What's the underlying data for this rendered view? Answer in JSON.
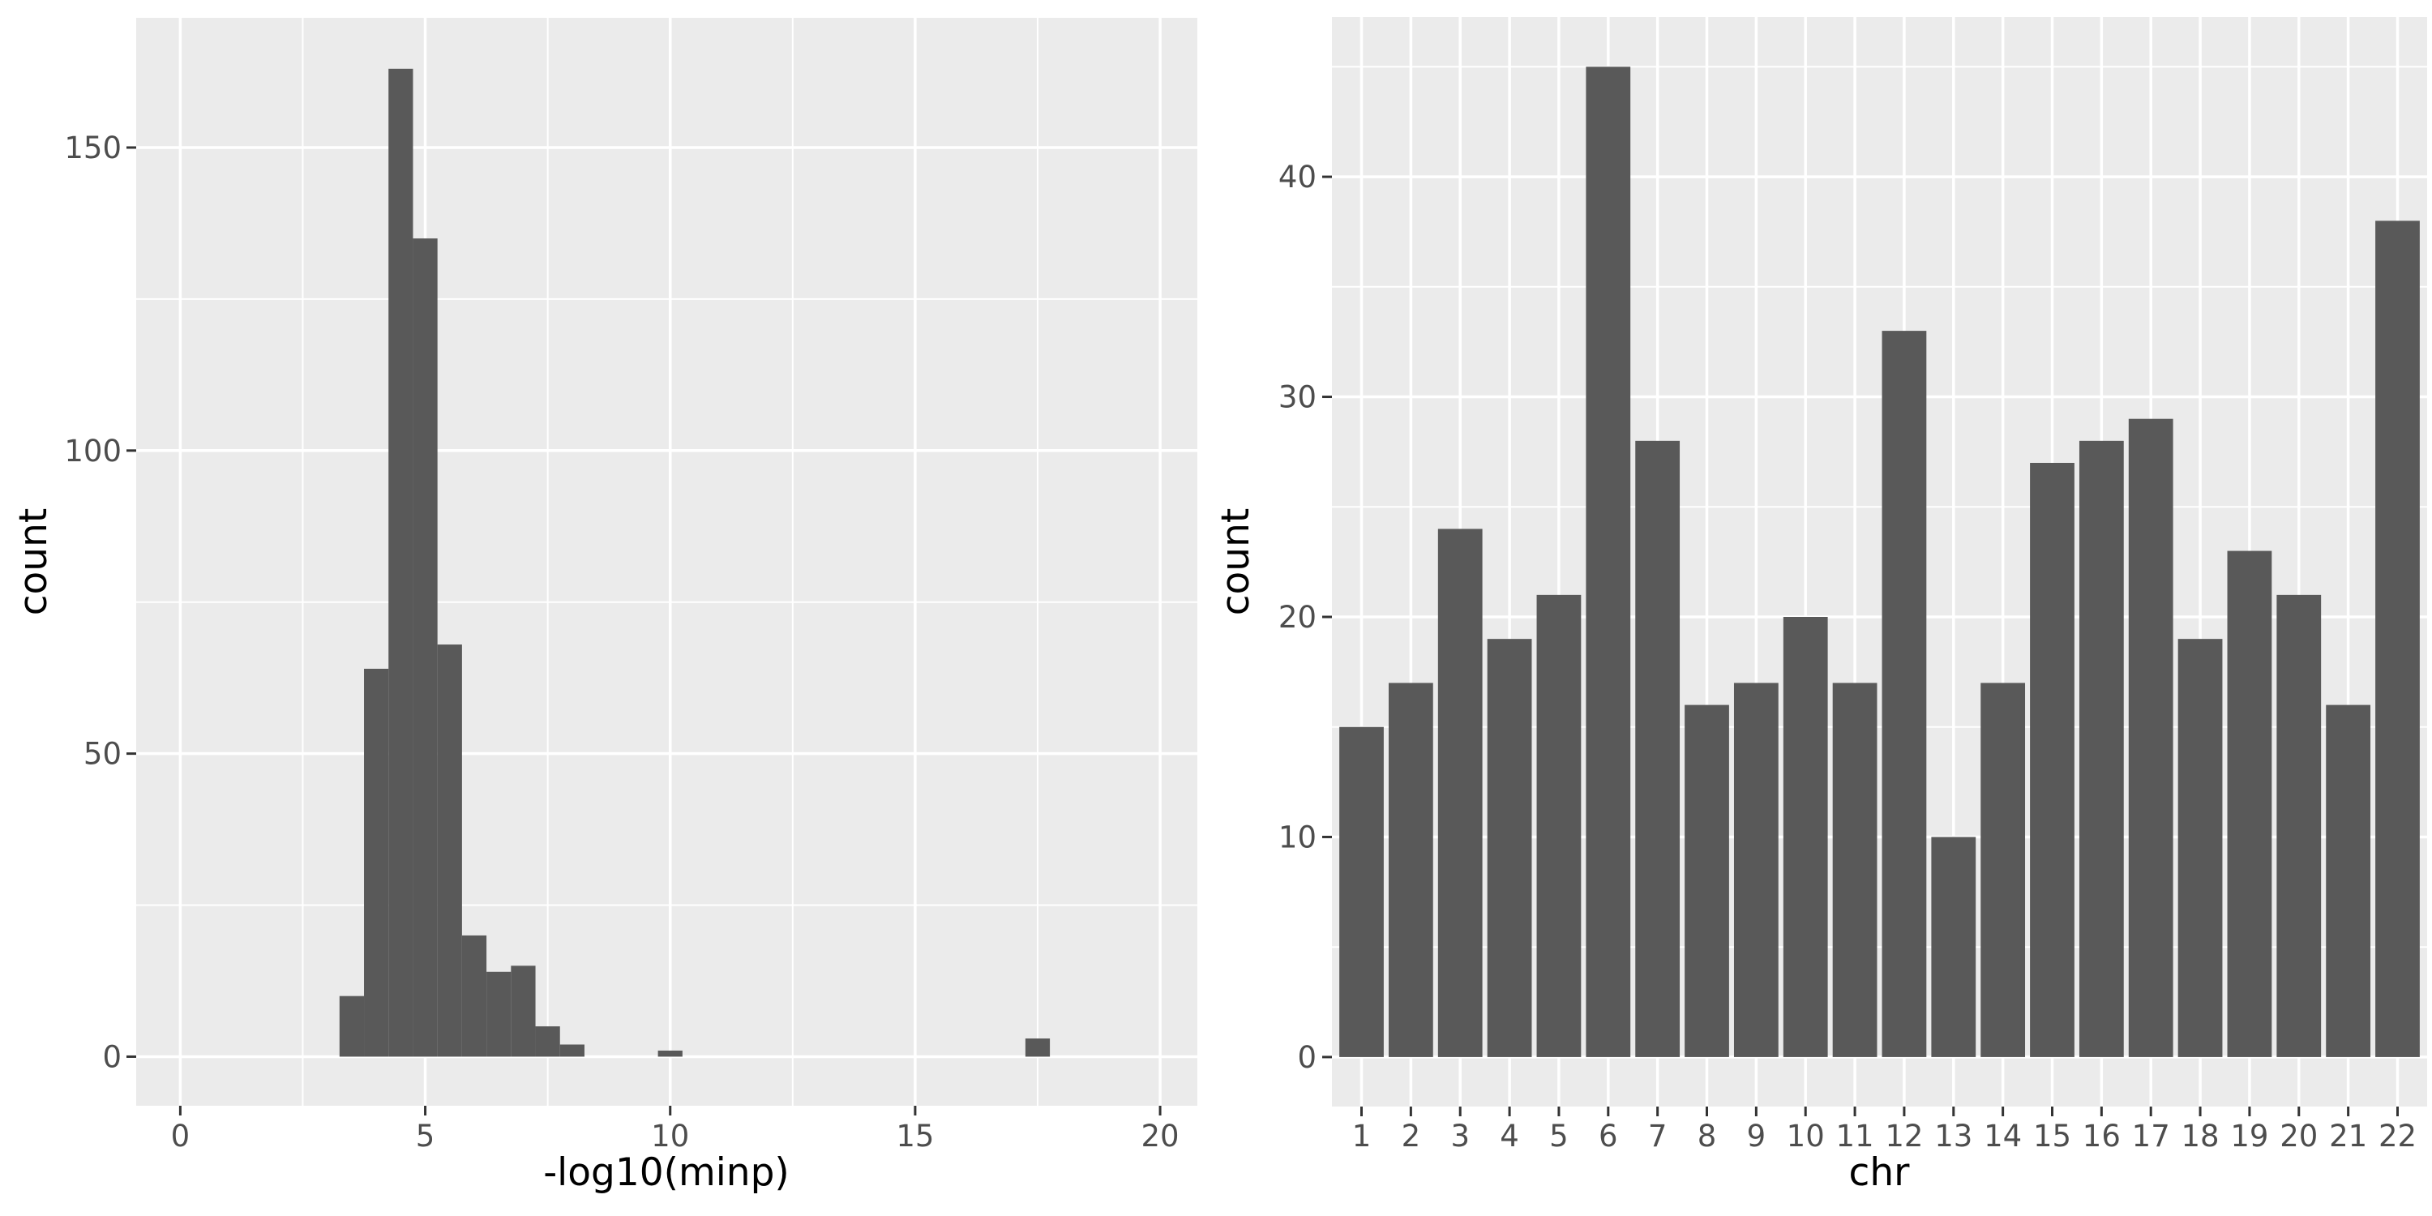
{
  "colors": {
    "figure_background": "#FFFFFF",
    "panel_background": "#EBEBEB",
    "gridline": "#FFFFFF",
    "bar_fill": "#595959",
    "tick_label": "#4D4D4D",
    "axis_title": "#000000",
    "tick_mark": "#333333"
  },
  "chart_data": [
    {
      "type": "bar",
      "subtype": "histogram",
      "title": "",
      "xlabel": "-log10(minp)",
      "ylabel": "count",
      "bin_width": 0.5,
      "bin_centers": [
        3.5,
        4.0,
        4.5,
        5.0,
        5.5,
        6.0,
        6.5,
        7.0,
        7.5,
        8.0,
        10.0,
        17.5
      ],
      "values": [
        10,
        64,
        163,
        135,
        68,
        20,
        14,
        15,
        5,
        2,
        1,
        3
      ],
      "x_ticks": {
        "values": [
          0,
          5,
          10,
          15,
          20
        ],
        "labels": [
          "0",
          "5",
          "10",
          "15",
          "20"
        ]
      },
      "x_minor": [
        2.5,
        7.5,
        12.5,
        17.5
      ],
      "y_ticks": {
        "values": [
          0,
          50,
          100,
          150
        ],
        "labels": [
          "0",
          "50",
          "100",
          "150"
        ]
      },
      "y_minor": [
        25,
        75,
        125,
        175
      ],
      "xlim": [
        -0.9,
        20.76
      ],
      "ylim": [
        -8.1,
        171.4
      ],
      "grid": true,
      "legend": "none"
    },
    {
      "type": "bar",
      "subtype": "discrete-bar",
      "title": "",
      "xlabel": "chr",
      "ylabel": "count",
      "categories": [
        "1",
        "2",
        "3",
        "4",
        "5",
        "6",
        "7",
        "8",
        "9",
        "10",
        "11",
        "12",
        "13",
        "14",
        "15",
        "16",
        "17",
        "18",
        "19",
        "20",
        "21",
        "22"
      ],
      "values": [
        15,
        17,
        24,
        19,
        21,
        45,
        28,
        16,
        17,
        20,
        17,
        33,
        10,
        17,
        27,
        28,
        29,
        19,
        23,
        21,
        16,
        38
      ],
      "bar_rel_width": 0.9,
      "y_ticks": {
        "values": [
          0,
          10,
          20,
          30,
          40
        ],
        "labels": [
          "0",
          "10",
          "20",
          "30",
          "40"
        ]
      },
      "y_minor": [
        5,
        15,
        25,
        35,
        45
      ],
      "xlim": [
        0.4,
        22.6
      ],
      "ylim": [
        -2.25,
        47.26
      ],
      "grid": true,
      "legend": "none"
    }
  ]
}
